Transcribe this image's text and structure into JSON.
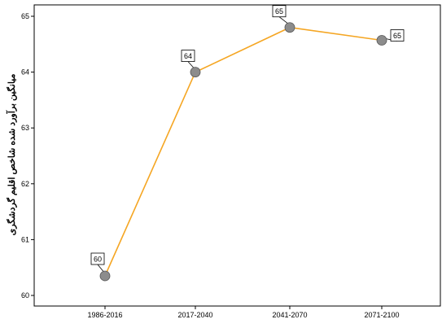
{
  "chart_data": {
    "type": "line",
    "title": "",
    "xlabel": "",
    "ylabel": "میانگین برآورد شده شاخص اقلیم گردشگری",
    "categories": [
      "1986-2016",
      "2017-2040",
      "2041-2070",
      "2071-2100"
    ],
    "series": [
      {
        "values": [
          60.35,
          64.0,
          64.8,
          64.57
        ],
        "data_labels": [
          "60",
          "64",
          "65",
          "65"
        ]
      }
    ],
    "ylim": [
      59.8,
      65.2
    ],
    "yticks": [
      60,
      61,
      62,
      63,
      64,
      65
    ],
    "grid": false,
    "line_color": "#f5a623",
    "marker_color": "#8c8c8c"
  }
}
